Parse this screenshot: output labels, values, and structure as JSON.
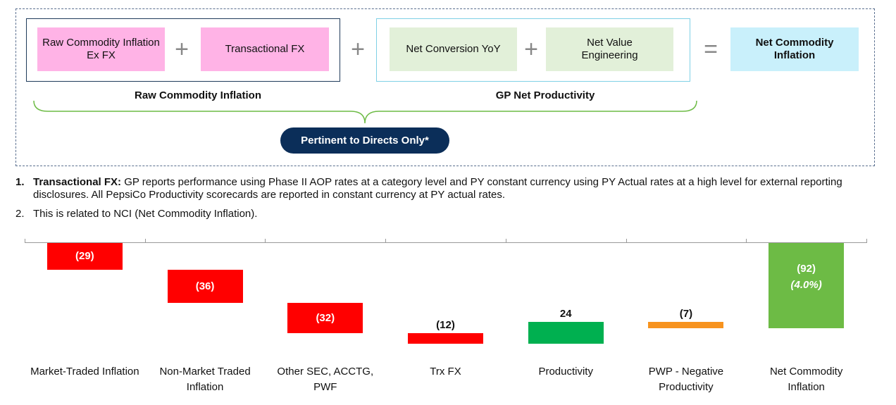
{
  "diagram": {
    "boxes": [
      "Raw Commodity Inflation Ex FX",
      "Transactional FX",
      "Net Conversion YoY",
      "Net Value Engineering",
      "Net Commodity Inflation"
    ],
    "operators": [
      "+",
      "+",
      "+",
      "="
    ],
    "group_labels": [
      "Raw Commodity Inflation",
      "GP Net Productivity"
    ],
    "badge": "Pertinent to Directs Only*"
  },
  "notes": [
    {
      "number": "1.",
      "term": "Transactional FX:",
      "text": "GP reports performance using Phase II AOP rates at a category level and PY constant currency using PY Actual rates at a high level for external reporting disclosures.  All PepsiCo Productivity scorecards are reported in constant currency at PY actual rates."
    },
    {
      "number": "2.",
      "text": "This is related to NCI (Net Commodity Inflation)."
    }
  ],
  "chart_data": {
    "type": "waterfall",
    "categories": [
      "Market-Traded Inflation",
      "Non-Market Traded Inflation",
      "Other SEC, ACCTG, PWF",
      "Trx FX",
      "Productivity",
      "PWP - Negative Productivity",
      "Net Commodity Inflation"
    ],
    "values": [
      -29,
      -36,
      -32,
      -12,
      24,
      -7,
      -92
    ],
    "value_labels": [
      "(29)",
      "(36)",
      "(32)",
      "(12)",
      "24",
      "(7)",
      "(92)"
    ],
    "colors": [
      "#ff0000",
      "#ff0000",
      "#ff0000",
      "#ff0000",
      "#00b050",
      "#f7931e",
      "#6dbb45"
    ],
    "total_last": true,
    "annotations": [
      "(4.0%)"
    ],
    "ylim": [
      -100,
      0
    ]
  }
}
